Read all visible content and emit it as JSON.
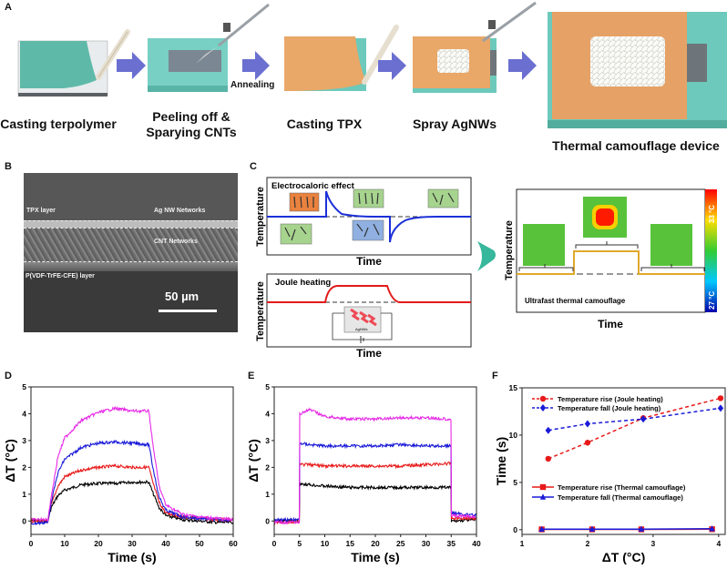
{
  "figure": {
    "panels": {
      "A": {
        "label": "A",
        "steps": [
          {
            "caption": "Casting terpolymer"
          },
          {
            "caption_line1": "Peeling off &",
            "caption_line2": "Sparying CNTs"
          },
          {
            "caption": "Casting TPX"
          },
          {
            "caption": "Spray AgNWs"
          },
          {
            "caption": "Thermal camouflage device"
          }
        ],
        "arrow_note": "Annealing",
        "colors": {
          "teal": "#6cc9bb",
          "orange": "#e9a768",
          "arrow": "#6a6fd0",
          "gray": "#7b8388"
        }
      },
      "B": {
        "label": "B",
        "annotations": [
          "TPX layer",
          "Ag NW Networks",
          "CNT Networks",
          "P(VDF-TrFE-CFE) layer"
        ],
        "scale_bar": "50 µm"
      },
      "C": {
        "label": "C",
        "top": {
          "title": "Electrocaloric effect",
          "ylabel": "Temperature",
          "xlabel": "Time"
        },
        "bottom": {
          "title": "Joule heating",
          "ylabel": "Temperature",
          "xlabel": "Time",
          "device_label": "AgNWs"
        },
        "right": {
          "caption": "Ultrafast thermal camouflage",
          "ylabel": "Temperature",
          "xlabel": "Time",
          "colorbar_max": "33 °C",
          "colorbar_min": "27 °C"
        }
      }
    }
  },
  "chart_data": [
    {
      "panel": "D",
      "type": "line",
      "title": "",
      "xlabel": "Time (s)",
      "ylabel": "ΔT (°C)",
      "xlim": [
        0,
        60
      ],
      "ylim": [
        -0.5,
        5
      ],
      "xticks": [
        0,
        10,
        20,
        30,
        40,
        50,
        60
      ],
      "yticks": [
        0,
        1,
        2,
        3,
        4,
        5
      ],
      "grid": false,
      "series": [
        {
          "name": "black",
          "color": "#000000",
          "x": [
            0,
            5,
            6,
            8,
            10,
            15,
            20,
            25,
            30,
            35,
            36,
            38,
            40,
            45,
            50,
            55,
            60
          ],
          "y": [
            0,
            0,
            0.5,
            0.95,
            1.15,
            1.35,
            1.4,
            1.4,
            1.45,
            1.45,
            1.1,
            0.5,
            0.2,
            0.05,
            0,
            -0.05,
            -0.05
          ]
        },
        {
          "name": "red",
          "color": "#e81919",
          "x": [
            0,
            5,
            6,
            8,
            10,
            15,
            20,
            25,
            30,
            35,
            36,
            38,
            40,
            45,
            50,
            55,
            60
          ],
          "y": [
            0,
            0,
            0.6,
            1.3,
            1.65,
            1.9,
            2.0,
            2.05,
            2.0,
            2.0,
            1.5,
            0.7,
            0.3,
            0.15,
            0.1,
            0.05,
            0.05
          ]
        },
        {
          "name": "blue",
          "color": "#1a1ad8",
          "x": [
            0,
            5,
            6,
            8,
            10,
            15,
            20,
            25,
            30,
            35,
            36,
            38,
            40,
            45,
            50,
            55,
            60
          ],
          "y": [
            -0.1,
            -0.05,
            0.7,
            1.8,
            2.3,
            2.75,
            2.9,
            2.95,
            2.9,
            2.85,
            2.1,
            0.9,
            0.4,
            0.15,
            0.1,
            0.05,
            0.05
          ]
        },
        {
          "name": "magenta",
          "color": "#e62be6",
          "x": [
            0,
            5,
            6,
            8,
            10,
            15,
            20,
            25,
            30,
            35,
            36,
            38,
            40,
            45,
            50,
            55,
            60
          ],
          "y": [
            0.05,
            0.05,
            0.9,
            2.4,
            3.1,
            3.75,
            4.05,
            4.2,
            4.1,
            4.1,
            3.0,
            1.3,
            0.6,
            0.25,
            0.15,
            0.1,
            0.05
          ]
        }
      ]
    },
    {
      "panel": "E",
      "type": "line",
      "title": "",
      "xlabel": "Time (s)",
      "ylabel": "ΔT (°C)",
      "xlim": [
        0,
        40
      ],
      "ylim": [
        -0.5,
        5
      ],
      "xticks": [
        0,
        5,
        10,
        15,
        20,
        25,
        30,
        35,
        40
      ],
      "yticks": [
        0,
        1,
        2,
        3,
        4,
        5
      ],
      "grid": false,
      "series": [
        {
          "name": "black",
          "color": "#000000",
          "x": [
            0,
            4.95,
            5.05,
            7,
            10,
            15,
            20,
            25,
            30,
            34.95,
            35.05,
            40
          ],
          "y": [
            0,
            0,
            1.4,
            1.35,
            1.3,
            1.25,
            1.25,
            1.25,
            1.25,
            1.25,
            0,
            0.05
          ]
        },
        {
          "name": "red",
          "color": "#e81919",
          "x": [
            0,
            4.95,
            5.05,
            7,
            10,
            15,
            20,
            25,
            30,
            34.95,
            35.05,
            40
          ],
          "y": [
            -0.05,
            -0.05,
            2.1,
            2.1,
            2.05,
            2.05,
            2.05,
            2.05,
            2.1,
            2.15,
            0.1,
            0.1
          ]
        },
        {
          "name": "blue",
          "color": "#1a1ad8",
          "x": [
            0,
            4.95,
            5.05,
            7,
            10,
            15,
            20,
            25,
            30,
            34.95,
            35.05,
            40
          ],
          "y": [
            0.05,
            0.05,
            2.9,
            2.85,
            2.8,
            2.8,
            2.8,
            2.85,
            2.8,
            2.8,
            0.3,
            0.2
          ]
        },
        {
          "name": "magenta",
          "color": "#e62be6",
          "x": [
            0,
            4.95,
            5.05,
            7,
            10,
            15,
            20,
            25,
            30,
            34.95,
            35.05,
            40
          ],
          "y": [
            -0.05,
            -0.05,
            4.0,
            4.15,
            3.9,
            3.8,
            3.8,
            3.85,
            3.85,
            3.8,
            0.2,
            0.15
          ]
        }
      ]
    },
    {
      "panel": "F",
      "type": "line",
      "title": "",
      "xlabel": "ΔT (°C)",
      "ylabel": "Time (s)",
      "xlim": [
        1,
        4.1
      ],
      "ylim": [
        -0.5,
        15
      ],
      "xticks": [
        1,
        2,
        3,
        4
      ],
      "yticks": [
        0,
        5,
        10,
        15
      ],
      "grid": false,
      "legend_positions": [
        "top-left",
        "center-left"
      ],
      "series": [
        {
          "name": "Temperature rise (Joule heating)",
          "color": "#e81919",
          "style": "dashed",
          "marker": "circle",
          "x": [
            1.4,
            2.0,
            2.85,
            4.03
          ],
          "y": [
            7.5,
            9.2,
            11.8,
            13.9
          ]
        },
        {
          "name": "Temperature fall (Joule heating)",
          "color": "#1a1ad8",
          "style": "dashed",
          "marker": "diamond",
          "x": [
            1.4,
            2.0,
            2.85,
            4.03
          ],
          "y": [
            10.5,
            11.2,
            11.7,
            12.85
          ]
        },
        {
          "name": "Temperature rise (Thermal camouflage)",
          "color": "#e81919",
          "style": "solid",
          "marker": "square",
          "x": [
            1.3,
            2.07,
            2.82,
            3.9
          ],
          "y": [
            0.03,
            0.03,
            0.03,
            0.05
          ]
        },
        {
          "name": "Temperature fall (Thermal camouflage)",
          "color": "#1a1ad8",
          "style": "solid",
          "marker": "triangle",
          "x": [
            1.3,
            2.07,
            2.82,
            3.9
          ],
          "y": [
            0.05,
            0.06,
            0.06,
            0.1
          ]
        }
      ]
    }
  ],
  "panel_labels": {
    "D": "D",
    "E": "E",
    "F": "F"
  }
}
